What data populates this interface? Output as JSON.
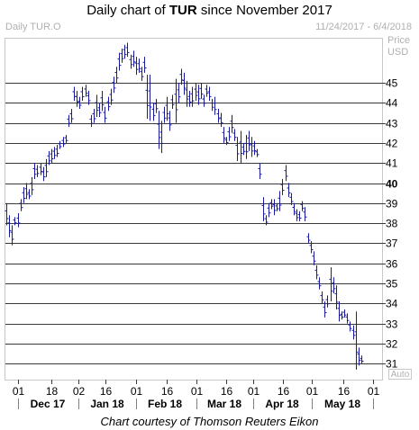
{
  "header": {
    "title_prefix": "Daily chart of ",
    "title_symbol": "TUR",
    "title_suffix": " since November 2017",
    "symbol_label": "Daily TUR.O",
    "date_range": "11/24/2017 - 6/4/2018",
    "price_label": "Price",
    "currency_label": "USD",
    "auto_label": "Auto"
  },
  "footer": {
    "credit": "Chart courtesy of Thomson Reuters Eikon"
  },
  "chart_data": {
    "type": "bar",
    "style": "ohlc",
    "title": "Daily chart of TUR since November 2017",
    "ylabel": "Price USD",
    "ylim": [
      30.2,
      47.2
    ],
    "y_ticks": [
      31,
      32,
      33,
      34,
      35,
      36,
      37,
      38,
      39,
      40,
      41,
      42,
      43,
      44,
      45
    ],
    "y_tick_bold": 40,
    "x_ticks": [
      "01",
      "18",
      "02",
      "16",
      "01",
      "16",
      "01",
      "16",
      "01",
      "16",
      "01",
      "16",
      "01"
    ],
    "x_months": [
      "Dec 17",
      "Jan 18",
      "Feb 18",
      "Mar 18",
      "Apr 18",
      "May 18"
    ],
    "grid": true,
    "line_color": "#1a1aa0",
    "series": [
      {
        "values": [
          {
            "h": 39.0,
            "l": 37.9
          },
          {
            "h": 38.4,
            "l": 37.3
          },
          {
            "h": 37.9,
            "l": 36.9
          },
          {
            "h": 38.3,
            "l": 37.9
          },
          {
            "h": 38.5,
            "l": 37.8
          },
          {
            "h": 39.2,
            "l": 38.6
          },
          {
            "h": 39.8,
            "l": 39.0
          },
          {
            "h": 40.0,
            "l": 39.2
          },
          {
            "h": 39.7,
            "l": 39.2
          },
          {
            "h": 40.3,
            "l": 39.4
          },
          {
            "h": 41.0,
            "l": 40.2
          },
          {
            "h": 40.9,
            "l": 40.3
          },
          {
            "h": 41.0,
            "l": 40.4
          },
          {
            "h": 40.8,
            "l": 40.1
          },
          {
            "h": 41.2,
            "l": 40.3
          },
          {
            "h": 41.6,
            "l": 40.9
          },
          {
            "h": 41.7,
            "l": 41.0
          },
          {
            "h": 41.8,
            "l": 41.2
          },
          {
            "h": 41.9,
            "l": 41.3
          },
          {
            "h": 42.1,
            "l": 41.7
          },
          {
            "h": 42.3,
            "l": 41.8
          },
          {
            "h": 42.4,
            "l": 42.0
          },
          {
            "h": 43.4,
            "l": 42.8
          },
          {
            "h": 43.7,
            "l": 43.0
          },
          {
            "h": 44.8,
            "l": 44.1
          },
          {
            "h": 44.6,
            "l": 43.8
          },
          {
            "h": 44.3,
            "l": 43.7
          },
          {
            "h": 44.8,
            "l": 44.1
          },
          {
            "h": 44.9,
            "l": 44.3
          },
          {
            "h": 44.6,
            "l": 43.9
          },
          {
            "h": 43.4,
            "l": 42.8
          },
          {
            "h": 43.7,
            "l": 43.0
          },
          {
            "h": 44.4,
            "l": 43.3
          },
          {
            "h": 44.0,
            "l": 43.3
          },
          {
            "h": 44.6,
            "l": 43.6
          },
          {
            "h": 43.8,
            "l": 43.0
          },
          {
            "h": 44.3,
            "l": 43.6
          },
          {
            "h": 44.7,
            "l": 43.9
          },
          {
            "h": 45.3,
            "l": 44.5
          },
          {
            "h": 45.8,
            "l": 45.0
          },
          {
            "h": 46.5,
            "l": 45.6
          },
          {
            "h": 46.7,
            "l": 46.0
          },
          {
            "h": 46.9,
            "l": 46.2
          },
          {
            "h": 47.0,
            "l": 46.3
          },
          {
            "h": 46.4,
            "l": 45.7
          },
          {
            "h": 46.6,
            "l": 45.8
          },
          {
            "h": 46.3,
            "l": 45.4
          },
          {
            "h": 46.2,
            "l": 45.5
          },
          {
            "h": 45.8,
            "l": 45.1
          },
          {
            "h": 46.3,
            "l": 45.5
          },
          {
            "h": 45.4,
            "l": 43.2
          },
          {
            "h": 45.4,
            "l": 43.1
          },
          {
            "h": 44.0,
            "l": 43.1
          },
          {
            "h": 44.2,
            "l": 43.5
          },
          {
            "h": 43.6,
            "l": 41.7
          },
          {
            "h": 43.1,
            "l": 41.5
          },
          {
            "h": 43.8,
            "l": 43.0
          },
          {
            "h": 44.3,
            "l": 43.1
          },
          {
            "h": 43.6,
            "l": 42.6
          },
          {
            "h": 44.4,
            "l": 43.7
          },
          {
            "h": 45.2,
            "l": 43.0
          },
          {
            "h": 45.0,
            "l": 44.0
          },
          {
            "h": 45.7,
            "l": 44.9
          },
          {
            "h": 45.5,
            "l": 44.4
          },
          {
            "h": 45.1,
            "l": 43.8
          },
          {
            "h": 44.6,
            "l": 43.8
          },
          {
            "h": 44.8,
            "l": 43.8
          },
          {
            "h": 45.0,
            "l": 44.1
          },
          {
            "h": 44.9,
            "l": 43.9
          },
          {
            "h": 45.0,
            "l": 44.2
          },
          {
            "h": 44.4,
            "l": 43.8
          },
          {
            "h": 44.9,
            "l": 44.3
          },
          {
            "h": 44.8,
            "l": 44.1
          },
          {
            "h": 44.2,
            "l": 43.6
          },
          {
            "h": 44.3,
            "l": 43.4
          },
          {
            "h": 43.7,
            "l": 43.0
          },
          {
            "h": 43.5,
            "l": 42.8
          },
          {
            "h": 42.8,
            "l": 42.0
          },
          {
            "h": 42.3,
            "l": 41.9
          },
          {
            "h": 42.8,
            "l": 42.1
          },
          {
            "h": 43.4,
            "l": 42.5
          },
          {
            "h": 42.7,
            "l": 42.1
          },
          {
            "h": 42.3,
            "l": 41.1
          },
          {
            "h": 42.6,
            "l": 41.0
          },
          {
            "h": 42.0,
            "l": 41.4
          },
          {
            "h": 42.4,
            "l": 41.2
          },
          {
            "h": 42.6,
            "l": 41.6
          },
          {
            "h": 42.3,
            "l": 41.3
          },
          {
            "h": 42.1,
            "l": 41.4
          },
          {
            "h": 41.7,
            "l": 41.3
          },
          {
            "h": 41.0,
            "l": 40.2
          },
          {
            "h": 39.3,
            "l": 38.1
          },
          {
            "h": 38.4,
            "l": 37.9
          },
          {
            "h": 39.0,
            "l": 38.3
          },
          {
            "h": 39.2,
            "l": 38.7
          },
          {
            "h": 39.2,
            "l": 38.4
          },
          {
            "h": 39.0,
            "l": 38.6
          },
          {
            "h": 39.6,
            "l": 38.6
          },
          {
            "h": 40.2,
            "l": 39.4
          },
          {
            "h": 40.9,
            "l": 40.1
          },
          {
            "h": 40.0,
            "l": 39.3
          },
          {
            "h": 39.5,
            "l": 38.9
          },
          {
            "h": 39.0,
            "l": 38.4
          },
          {
            "h": 38.7,
            "l": 38.1
          },
          {
            "h": 38.6,
            "l": 38.1
          },
          {
            "h": 39.1,
            "l": 38.6
          },
          {
            "h": 38.8,
            "l": 38.1
          },
          {
            "h": 37.5,
            "l": 37.0
          },
          {
            "h": 37.1,
            "l": 36.5
          },
          {
            "h": 36.6,
            "l": 35.9
          },
          {
            "h": 35.9,
            "l": 35.2
          },
          {
            "h": 35.3,
            "l": 34.7
          },
          {
            "h": 34.6,
            "l": 34.0
          },
          {
            "h": 34.1,
            "l": 33.3
          },
          {
            "h": 34.4,
            "l": 33.8
          },
          {
            "h": 35.8,
            "l": 34.1
          },
          {
            "h": 35.3,
            "l": 34.5
          },
          {
            "h": 34.9,
            "l": 33.7
          },
          {
            "h": 34.1,
            "l": 33.1
          },
          {
            "h": 33.6,
            "l": 33.2
          },
          {
            "h": 33.7,
            "l": 33.3
          },
          {
            "h": 33.5,
            "l": 33.0
          },
          {
            "h": 33.1,
            "l": 32.6
          },
          {
            "h": 32.9,
            "l": 32.2
          },
          {
            "h": 33.6,
            "l": 30.7
          },
          {
            "h": 31.8,
            "l": 30.9
          },
          {
            "h": 31.4,
            "l": 31.0
          }
        ]
      }
    ]
  }
}
